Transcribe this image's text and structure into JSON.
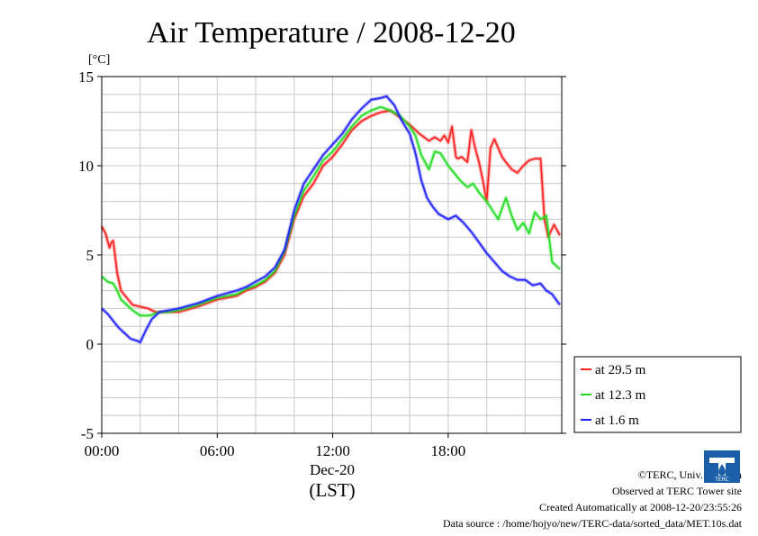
{
  "chart_data": {
    "type": "line",
    "title": "Air Temperature / 2008-12-20",
    "yunit": "[°C]",
    "xlabel_date": "Dec-20",
    "xlabel_tz": "(LST)",
    "xlim_hours": [
      0,
      23.9
    ],
    "ylim": [
      -5,
      15
    ],
    "yticks": [
      {
        "v": 15,
        "label": "15"
      },
      {
        "v": 10,
        "label": "10"
      },
      {
        "v": 5,
        "label": "5"
      },
      {
        "v": 0,
        "label": "0"
      },
      {
        "v": -5,
        "label": "-5"
      }
    ],
    "xticks": [
      {
        "v": 0,
        "label": "00:00"
      },
      {
        "v": 6,
        "label": "06:00"
      },
      {
        "v": 12,
        "label": "12:00"
      },
      {
        "v": 18,
        "label": "18:00"
      }
    ],
    "grid": true,
    "legend_position": "right",
    "series": [
      {
        "name": "at 29.5 m",
        "color": "#ff2020",
        "x": [
          0,
          0.2,
          0.4,
          0.5,
          0.6,
          0.8,
          1,
          1.3,
          1.6,
          2,
          2.4,
          2.8,
          3,
          3.5,
          4,
          5,
          6,
          7,
          7.5,
          8,
          8.5,
          9,
          9.5,
          10,
          10.5,
          11,
          11.5,
          12,
          12.5,
          13,
          13.5,
          14,
          14.5,
          15,
          15.5,
          16,
          16.5,
          17,
          17.3,
          17.6,
          17.8,
          18,
          18.2,
          18.4,
          18.5,
          18.7,
          19,
          19.2,
          19.4,
          19.6,
          19.8,
          20,
          20.2,
          20.4,
          20.6,
          20.8,
          21,
          21.3,
          21.6,
          21.9,
          22.2,
          22.5,
          22.8,
          23,
          23.2,
          23.5,
          23.8
        ],
        "y": [
          6.6,
          6.2,
          5.4,
          5.7,
          5.8,
          4.0,
          3.0,
          2.6,
          2.2,
          2.1,
          2.0,
          1.8,
          1.8,
          1.8,
          1.8,
          2.1,
          2.5,
          2.7,
          3.0,
          3.2,
          3.5,
          4.0,
          5.0,
          7.0,
          8.3,
          9.0,
          10.0,
          10.5,
          11.2,
          12.0,
          12.5,
          12.8,
          13.0,
          13.1,
          12.7,
          12.3,
          11.8,
          11.4,
          11.6,
          11.4,
          11.7,
          11.3,
          12.2,
          10.5,
          10.4,
          10.5,
          10.2,
          12.0,
          11.0,
          10.2,
          9.2,
          8.0,
          11.0,
          11.5,
          11.0,
          10.5,
          10.2,
          9.8,
          9.6,
          10.0,
          10.3,
          10.4,
          10.4,
          7.0,
          6.0,
          6.7,
          6.1
        ]
      },
      {
        "name": "at 12.3 m",
        "color": "#20dd20",
        "x": [
          0,
          0.3,
          0.6,
          0.8,
          1,
          1.3,
          1.6,
          2,
          2.5,
          3,
          3.5,
          4,
          5,
          6,
          7,
          7.5,
          8,
          8.5,
          9,
          9.5,
          10,
          10.5,
          11,
          11.5,
          12,
          12.5,
          13,
          13.5,
          14,
          14.5,
          15,
          15.5,
          16,
          16.3,
          16.6,
          17,
          17.3,
          17.6,
          18,
          18.3,
          18.6,
          19,
          19.3,
          19.6,
          20,
          20.3,
          20.6,
          21,
          21.3,
          21.6,
          21.9,
          22.2,
          22.5,
          22.8,
          23.1,
          23.4,
          23.8
        ],
        "y": [
          3.8,
          3.5,
          3.4,
          3.0,
          2.5,
          2.2,
          1.9,
          1.6,
          1.6,
          1.8,
          1.8,
          1.9,
          2.2,
          2.6,
          2.8,
          3.1,
          3.3,
          3.6,
          4.1,
          5.2,
          7.2,
          8.6,
          9.4,
          10.3,
          10.8,
          11.5,
          12.2,
          12.8,
          13.1,
          13.3,
          13.1,
          12.8,
          12.2,
          11.7,
          10.6,
          9.8,
          10.8,
          10.7,
          10.0,
          9.6,
          9.2,
          8.8,
          9.0,
          8.5,
          8.0,
          7.5,
          7.0,
          8.2,
          7.2,
          6.4,
          6.8,
          6.2,
          7.4,
          7.0,
          7.2,
          4.6,
          4.2
        ]
      },
      {
        "name": "at 1.6 m",
        "color": "#2020ff",
        "x": [
          0,
          0.3,
          0.6,
          0.9,
          1.2,
          1.5,
          1.8,
          2,
          2.3,
          2.6,
          3,
          3.5,
          4,
          5,
          6,
          7,
          7.5,
          8,
          8.5,
          9,
          9.5,
          10,
          10.5,
          11,
          11.5,
          12,
          12.5,
          13,
          13.5,
          14,
          14.5,
          14.8,
          15.2,
          15.6,
          16,
          16.3,
          16.6,
          16.9,
          17.2,
          17.5,
          18,
          18.4,
          18.8,
          19.2,
          19.6,
          20,
          20.4,
          20.8,
          21.2,
          21.6,
          22,
          22.4,
          22.8,
          23.1,
          23.4,
          23.8
        ],
        "y": [
          2.0,
          1.7,
          1.3,
          0.9,
          0.6,
          0.3,
          0.2,
          0.1,
          0.8,
          1.4,
          1.8,
          1.9,
          2.0,
          2.3,
          2.7,
          3.0,
          3.2,
          3.5,
          3.8,
          4.3,
          5.3,
          7.5,
          9.0,
          9.8,
          10.6,
          11.2,
          11.8,
          12.6,
          13.2,
          13.7,
          13.8,
          13.9,
          13.4,
          12.5,
          11.8,
          10.7,
          9.2,
          8.2,
          7.7,
          7.3,
          7.0,
          7.2,
          6.8,
          6.3,
          5.7,
          5.1,
          4.6,
          4.1,
          3.8,
          3.6,
          3.6,
          3.3,
          3.4,
          3.0,
          2.8,
          2.2
        ]
      }
    ]
  },
  "credits": {
    "copyright": "©TERC, Univ. Tsukuba",
    "observed": "Observed at TERC Tower site",
    "created": "Created Automatically at 2008-12-20/23:55:26",
    "source": "Data source : /home/hojyo/new/TERC-data/sorted_data/MET.10s.dat",
    "logo_text": "TERC"
  }
}
